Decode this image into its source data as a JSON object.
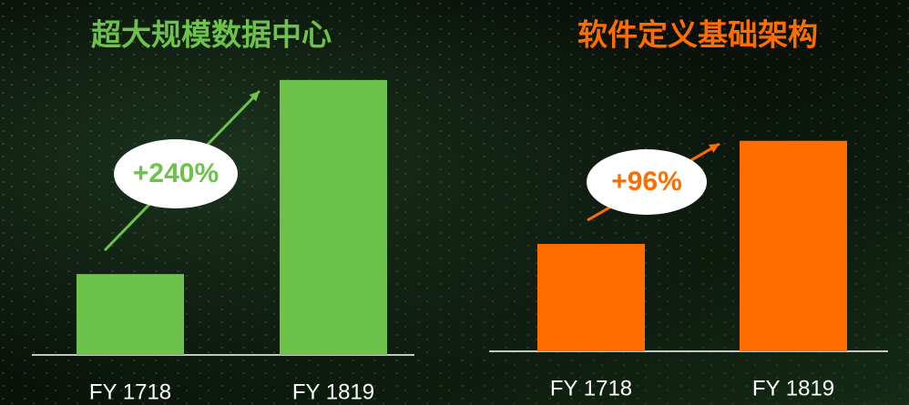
{
  "chart_data": [
    {
      "type": "bar",
      "title": "超大规模数据中心",
      "categories": [
        "FY 1718",
        "FY 1819"
      ],
      "values": [
        100,
        340
      ],
      "color": "#6cc24a",
      "ylim": [
        0,
        350
      ],
      "annotation": "+240%"
    },
    {
      "type": "bar",
      "title": "软件定义基础架构",
      "categories": [
        "FY 1718",
        "FY 1819"
      ],
      "values": [
        100,
        196
      ],
      "color": "#ff6d00",
      "ylim": [
        0,
        200
      ],
      "annotation": "+96%"
    }
  ]
}
